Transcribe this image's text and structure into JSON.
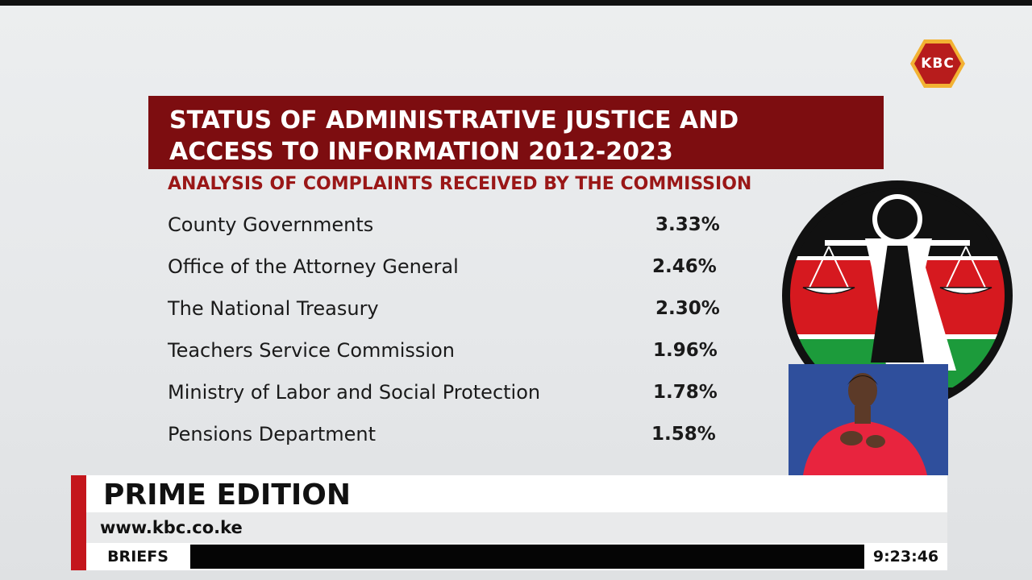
{
  "channel": {
    "logo_text": "KBC"
  },
  "graphic": {
    "title_lines": [
      "STATUS OF ADMINISTRATIVE JUSTICE AND",
      "ACCESS TO INFORMATION 2012-2023"
    ],
    "subtitle": "ANALYSIS OF COMPLAINTS RECEIVED BY THE COMMISSION",
    "rows": [
      {
        "name": "County Governments",
        "value": "3.33%"
      },
      {
        "name": "Office of the Attorney General",
        "value": "2.46%"
      },
      {
        "name": "The National Treasury",
        "value": "2.30%"
      },
      {
        "name": "Teachers Service Commission",
        "value": "1.96%"
      },
      {
        "name": "Ministry of Labor and Social Protection",
        "value": "1.78%"
      },
      {
        "name": "Pensions Department",
        "value": "1.58%"
      }
    ]
  },
  "lower_third": {
    "program": "PRIME EDITION",
    "url": "www.kbc.co.ke",
    "ticker_label": "BRIEFS",
    "clock": "9:23:46"
  },
  "colors": {
    "banner": "#7d0d10",
    "subtitle": "#9a1717",
    "logo_fill": "#b71c1c",
    "logo_border": "#f2b233",
    "accent": "#c4161c"
  },
  "icons": {
    "logo": "kbc-logo-icon",
    "emblem": "commission-emblem-icon",
    "interpreter": "sign-language-interpreter-icon"
  }
}
